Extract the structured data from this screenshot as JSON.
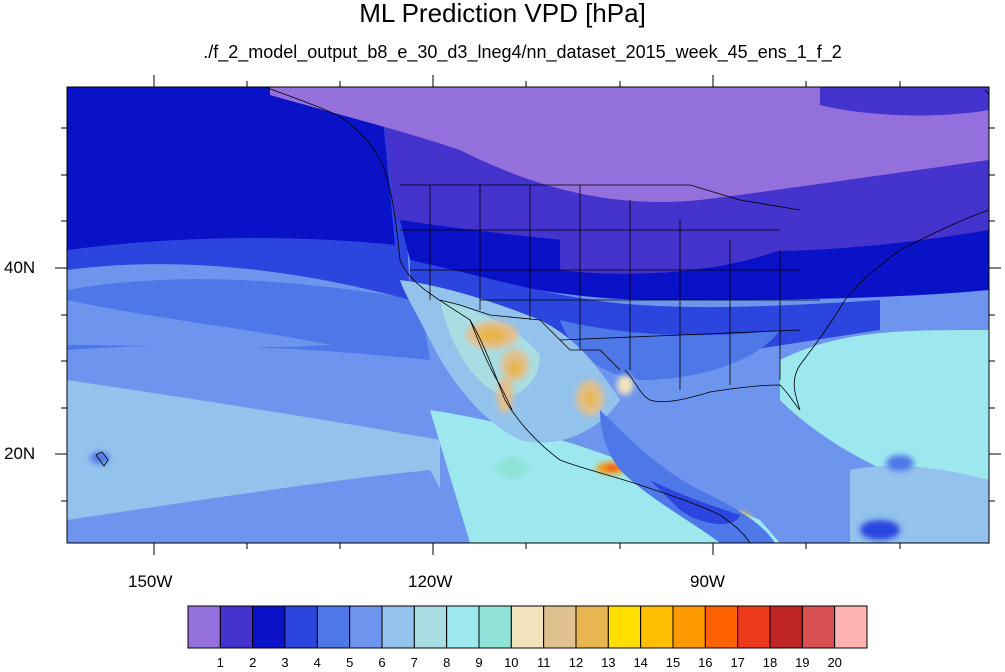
{
  "title": "ML Prediction VPD [hPa]",
  "subtitle": "./f_2_model_output_b8_e_30_d3_lneg4/nn_dataset_2015_week_45_ens_1_f_2",
  "axes": {
    "lat_labels": [
      "40N",
      "20N"
    ],
    "lon_labels": [
      "150W",
      "120W",
      "90W"
    ]
  },
  "colorbar": {
    "labels": [
      "1",
      "2",
      "3",
      "4",
      "5",
      "6",
      "7",
      "8",
      "9",
      "10",
      "11",
      "12",
      "13",
      "14",
      "15",
      "16",
      "17",
      "18",
      "19",
      "20"
    ],
    "colors": [
      "#9370db",
      "#4433cc",
      "#0a12c8",
      "#2c45df",
      "#4e78e8",
      "#6e95ee",
      "#93c2ec",
      "#a9dde4",
      "#9de8ef",
      "#90e3d8",
      "#f2e4bc",
      "#e1c08f",
      "#e7b650",
      "#ffde00",
      "#ffbe00",
      "#ff9900",
      "#ff6000",
      "#ee3a1c",
      "#bf2525",
      "#d85050",
      "#ffb2b2"
    ]
  }
}
